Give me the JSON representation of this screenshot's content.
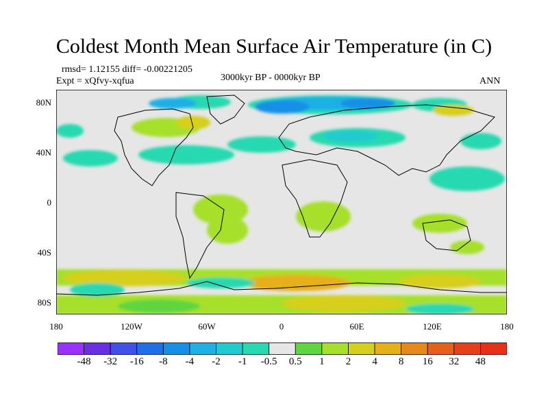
{
  "title": "Coldest Month Mean Surface Air Temperature (in C)",
  "stats": "rmsd= 1.12155  diff= -0.00221205",
  "experiment": "Expt = xQfvy-xqfua",
  "period": "3000kyr BP - 0000kyr BP",
  "season": "ANN",
  "y_ticks": [
    "80N",
    "40N",
    "0",
    "40S",
    "80S"
  ],
  "x_ticks": [
    "180",
    "120W",
    "60W",
    "0",
    "60E",
    "120E",
    "180"
  ],
  "colorbar": {
    "labels": [
      "-48",
      "-32",
      "-16",
      "-8",
      "-4",
      "-2",
      "-1",
      "-0.5",
      "0.5",
      "1",
      "2",
      "4",
      "8",
      "16",
      "32",
      "48"
    ],
    "colors": [
      "#9b30ff",
      "#6a2fe0",
      "#3f51e6",
      "#1f6fe6",
      "#1590e6",
      "#1eb0e6",
      "#20cad0",
      "#26d9b0",
      "#e6e6e6",
      "#5fd63f",
      "#a6e02a",
      "#d6cf1e",
      "#e6b01a",
      "#e6881a",
      "#e6601a",
      "#e6401a",
      "#e6301a"
    ]
  },
  "colors": {
    "background": "#ffffff",
    "neutral_fill": "#e6e6e6",
    "coastline": "#000000"
  }
}
